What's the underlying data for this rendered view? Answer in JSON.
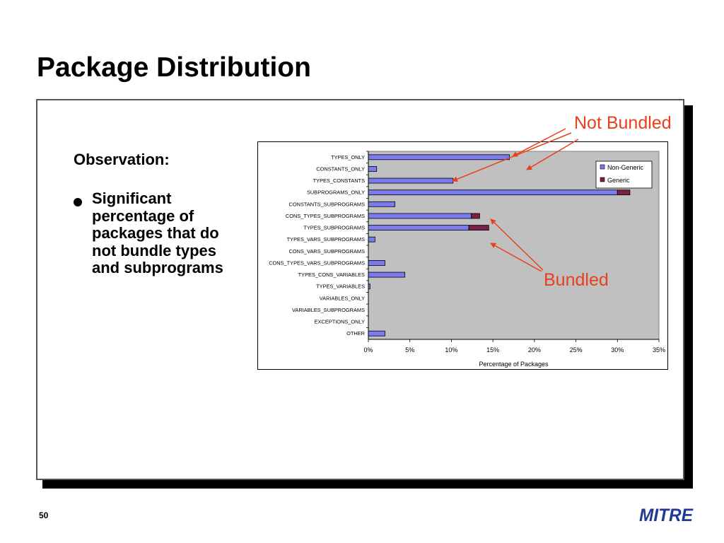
{
  "slide": {
    "title": "Package Distribution",
    "observation_heading": "Observation:",
    "bullet": "Significant percentage of packages that do not bundle types and subprograms",
    "slide_number": "50",
    "logo_text": "MITRE"
  },
  "annotations": {
    "not_bundled": "Not Bundled",
    "bundled": "Bundled",
    "color": "#e8401c"
  },
  "chart_data": {
    "type": "bar",
    "orientation": "horizontal",
    "stacked": true,
    "categories": [
      "TYPES_ONLY",
      "CONSTANTS_ONLY",
      "TYPES_CONSTANTS",
      "SUBPROGRAMS_ONLY",
      "CONSTANTS_SUBPROGRAMS",
      "CONS_TYPES_SUBPROGRAMS",
      "TYPES_SUBPROGRAMS",
      "TYPES_VARS_SUBPROGRAMS",
      "CONS_VARS_SUBPROGRAMS",
      "CONS_TYPES_VARS_SUBPROGRAMS",
      "TYPES_CONS_VARIABLES",
      "TYPES_VARIABLES",
      "VARIABLES_ONLY",
      "VARIABLES_SUBPROGRAMS",
      "EXCEPTIONS_ONLY",
      "OTHER"
    ],
    "series": [
      {
        "name": "Non-Generic",
        "color": "#7b7bee",
        "values": [
          17.0,
          1.0,
          10.2,
          30.0,
          3.2,
          12.4,
          12.1,
          0.8,
          0,
          2.0,
          4.4,
          0.2,
          0,
          0,
          0,
          2.0
        ]
      },
      {
        "name": "Generic",
        "color": "#7a1f4a",
        "values": [
          0,
          0,
          0,
          1.5,
          0,
          1.0,
          2.4,
          0,
          0,
          0,
          0,
          0,
          0,
          0,
          0,
          0
        ]
      }
    ],
    "xlim": [
      0,
      35
    ],
    "xticks": [
      "0%",
      "5%",
      "10%",
      "15%",
      "20%",
      "25%",
      "30%",
      "35%"
    ],
    "xlabel": "Percentage of Packages",
    "ylabel": "",
    "grid": false,
    "plot_background": "#c0c0c0",
    "legend_position": "top-right"
  }
}
